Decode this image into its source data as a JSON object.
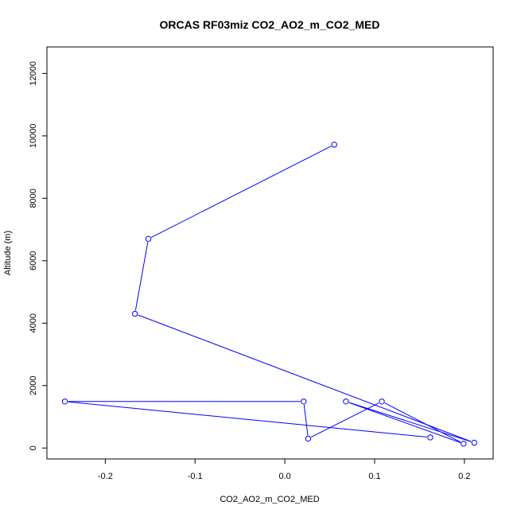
{
  "chart_data": {
    "type": "line",
    "title": "ORCAS RF03miz CO2_AO2_m_CO2_MED",
    "xlabel": "CO2_AO2_m_CO2_MED",
    "ylabel": "Altitude (m)",
    "xlim": [
      -0.265,
      0.232
    ],
    "ylim": [
      -350,
      12850
    ],
    "xticks": [
      -0.2,
      -0.1,
      0.0,
      0.1,
      0.2
    ],
    "xtick_labels": [
      "-0.2",
      "-0.1",
      "0.0",
      "0.1",
      "0.2"
    ],
    "yticks": [
      0,
      2000,
      4000,
      6000,
      8000,
      10000,
      12000
    ],
    "ytick_labels": [
      "0",
      "2000",
      "4000",
      "6000",
      "8000",
      "10000",
      "12000"
    ],
    "grid": false,
    "legend": "none",
    "color": "#0000ff",
    "series": [
      {
        "x": [
          0.055,
          -0.152,
          -0.167,
          0.211,
          0.068,
          0.199,
          0.108,
          0.026,
          0.021,
          -0.245,
          0.162
        ],
        "y": [
          9720,
          6700,
          4300,
          170,
          1490,
          140,
          1490,
          300,
          1490,
          1490,
          340
        ]
      }
    ]
  }
}
